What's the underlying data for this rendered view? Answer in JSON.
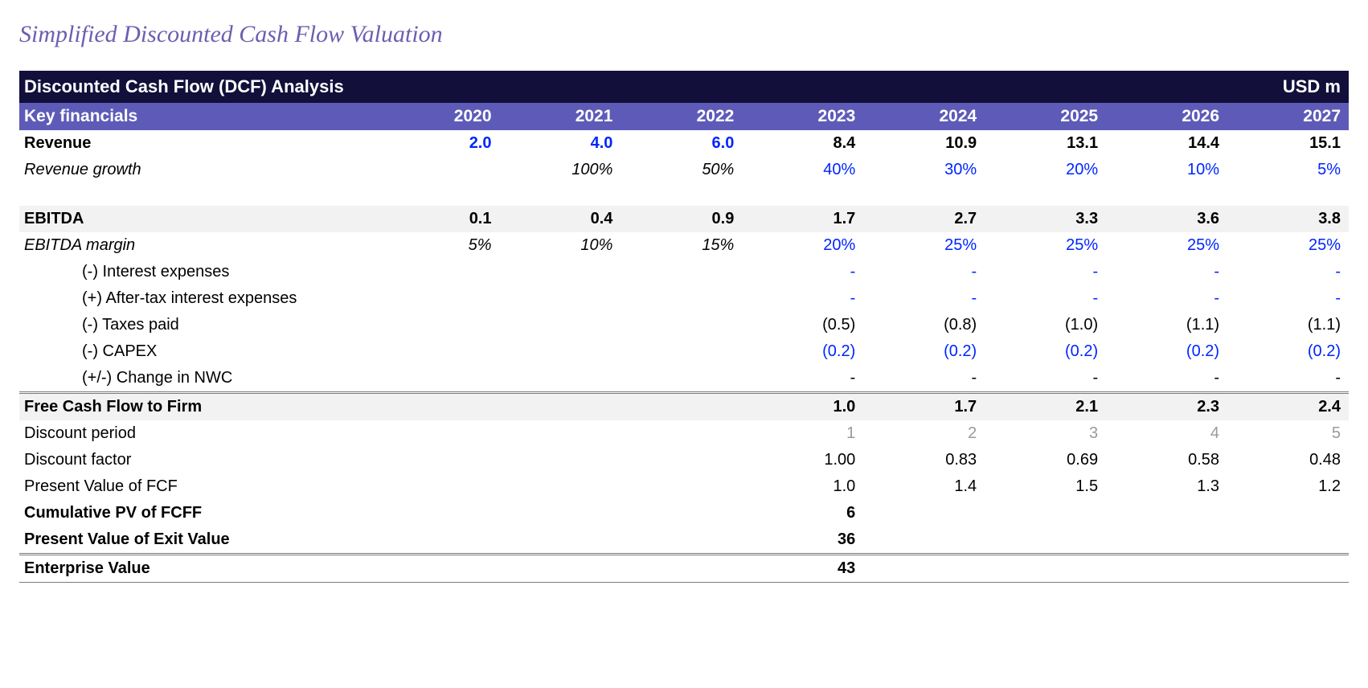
{
  "page_title": "Simplified Discounted Cash Flow Valuation",
  "banner": {
    "left": "Discounted Cash Flow (DCF) Analysis",
    "right": "USD m"
  },
  "colors": {
    "title": "#6a5fb0",
    "banner_bg": "#120f3a",
    "header_bg": "#5e5bb8",
    "header_text": "#ffffff",
    "link_blue": "#0025ff",
    "shade": "#f2f2f2",
    "grey_text": "#9a9a9a",
    "border": "#7a7a7a"
  },
  "columns": {
    "label_width_pct": 27
  },
  "years": [
    "2020",
    "2021",
    "2022",
    "2023",
    "2024",
    "2025",
    "2026",
    "2027"
  ],
  "hdr_label": "Key financials",
  "rows": {
    "revenue": {
      "label": "Revenue",
      "vals": [
        "2.0",
        "4.0",
        "6.0",
        "8.4",
        "10.9",
        "13.1",
        "14.4",
        "15.1"
      ],
      "blue_idx": [
        0,
        1,
        2
      ],
      "bold": true
    },
    "rev_growth": {
      "label": "Revenue growth",
      "vals": [
        "",
        "100%",
        "50%",
        "40%",
        "30%",
        "20%",
        "10%",
        "5%"
      ],
      "ital_idx": [
        1,
        2
      ],
      "blue_idx": [
        3,
        4,
        5,
        6,
        7
      ],
      "italic_label": true
    },
    "ebitda": {
      "label": "EBITDA",
      "vals": [
        "0.1",
        "0.4",
        "0.9",
        "1.7",
        "2.7",
        "3.3",
        "3.6",
        "3.8"
      ],
      "bold": true,
      "shade": true
    },
    "ebitda_margin": {
      "label": "EBITDA margin",
      "vals": [
        "5%",
        "10%",
        "15%",
        "20%",
        "25%",
        "25%",
        "25%",
        "25%"
      ],
      "ital_idx": [
        0,
        1,
        2
      ],
      "blue_idx": [
        3,
        4,
        5,
        6,
        7
      ],
      "italic_label": true
    },
    "interest": {
      "label": "(-) Interest expenses",
      "vals": [
        "",
        "",
        "",
        "-",
        "-",
        "-",
        "-",
        "-"
      ],
      "blue_idx": [
        3,
        4,
        5,
        6,
        7
      ],
      "indent": true
    },
    "after_tax_int": {
      "label": "(+) After-tax interest expenses",
      "vals": [
        "",
        "",
        "",
        "-",
        "-",
        "-",
        "-",
        "-"
      ],
      "blue_idx": [
        3,
        4,
        5,
        6,
        7
      ],
      "indent": true
    },
    "taxes": {
      "label": "(-) Taxes paid",
      "vals": [
        "",
        "",
        "",
        "(0.5)",
        "(0.8)",
        "(1.0)",
        "(1.1)",
        "(1.1)"
      ],
      "indent": true
    },
    "capex": {
      "label": "(-) CAPEX",
      "vals": [
        "",
        "",
        "",
        "(0.2)",
        "(0.2)",
        "(0.2)",
        "(0.2)",
        "(0.2)"
      ],
      "blue_idx": [
        3,
        4,
        5,
        6,
        7
      ],
      "indent": true
    },
    "nwc": {
      "label": "(+/-) Change in NWC",
      "vals": [
        "",
        "",
        "",
        "-",
        "-",
        "-",
        "-",
        "-"
      ],
      "indent": true
    },
    "fcff": {
      "label": "Free Cash Flow to Firm",
      "vals": [
        "",
        "",
        "",
        "1.0",
        "1.7",
        "2.1",
        "2.3",
        "2.4"
      ],
      "bold": true,
      "shade": true,
      "top_double": true
    },
    "disc_period": {
      "label": "Discount period",
      "vals": [
        "",
        "",
        "",
        "1",
        "2",
        "3",
        "4",
        "5"
      ],
      "grey_idx": [
        3,
        4,
        5,
        6,
        7
      ]
    },
    "disc_factor": {
      "label": "Discount factor",
      "vals": [
        "",
        "",
        "",
        "1.00",
        "0.83",
        "0.69",
        "0.58",
        "0.48"
      ]
    },
    "pv_fcf": {
      "label": "Present Value of FCF",
      "vals": [
        "",
        "",
        "",
        "1.0",
        "1.4",
        "1.5",
        "1.3",
        "1.2"
      ]
    },
    "cum_pv": {
      "label": "Cumulative PV of FCFF",
      "vals": [
        "",
        "",
        "",
        "6",
        "",
        "",
        "",
        ""
      ],
      "bold": true
    },
    "pv_exit": {
      "label": "Present Value of Exit Value",
      "vals": [
        "",
        "",
        "",
        "36",
        "",
        "",
        "",
        ""
      ],
      "bold": true
    },
    "ev": {
      "label": "Enterprise Value",
      "vals": [
        "",
        "",
        "",
        "43",
        "",
        "",
        "",
        ""
      ],
      "bold": true,
      "top_double": true,
      "bot_single": true
    }
  },
  "row_order": [
    "revenue",
    "rev_growth",
    "SPACER",
    "ebitda",
    "ebitda_margin",
    "interest",
    "after_tax_int",
    "taxes",
    "capex",
    "nwc",
    "fcff",
    "disc_period",
    "disc_factor",
    "pv_fcf",
    "cum_pv",
    "pv_exit",
    "ev"
  ]
}
